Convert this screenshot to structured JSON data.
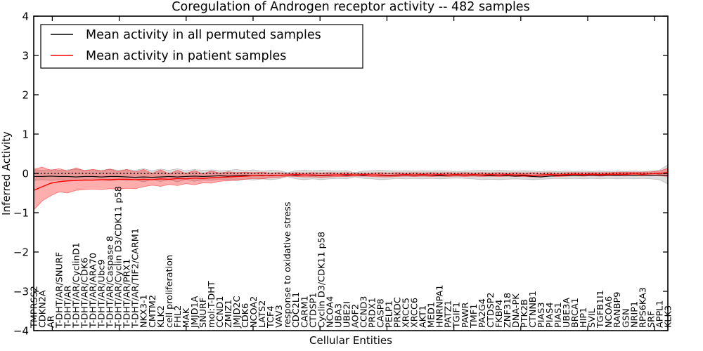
{
  "chart_data": {
    "type": "line",
    "title": "Coregulation of Androgen receptor activity -- 482 samples",
    "xlabel": "Cellular Entities",
    "ylabel": "Inferred Activity",
    "ylim": [
      -4,
      4
    ],
    "grid": false,
    "zero_line": "dotted",
    "yticks": [
      4,
      3,
      2,
      1,
      0,
      -1,
      -2,
      -3,
      -4
    ],
    "ytick_labels": [
      "4",
      "3",
      "2",
      "1",
      "0",
      "−1",
      "−2",
      "−3",
      "−4"
    ],
    "legend": {
      "position": "upper left",
      "entries": [
        {
          "label": "Mean activity in all permuted samples",
          "color": "#000000"
        },
        {
          "label": "Mean activity in patient samples",
          "color": "#ff0000"
        }
      ]
    },
    "categories": [
      "TMPRSS2",
      "CDKN2A",
      "AR",
      "T-DHT/AR/SNURF",
      "T-DHT/AR",
      "T-DHT/AR/CyclinD1",
      "T-DHT/AR/CDK6",
      "T-DHT/AR/ARA70",
      "T-DHT/AR/Ubc9",
      "T-DHT/AR/Caspase 8",
      "T-DHT/AR/Cyclin D3/CDK11 p58",
      "T-DHT/AR/PRX1",
      "T-DHT/AR/TIF2/CARM1",
      "NKX3-1",
      "CMTM2",
      "KLK2",
      "cell proliferation",
      "FHL2",
      "MAK",
      "JMJD1A",
      "SNURF",
      "mol:T-DHT",
      "CCND1",
      "ZMIZ1",
      "JMJD2C",
      "CDK6",
      "NCOA2",
      "LATS2",
      "TCF4",
      "VAV3",
      "response to oxidative stress",
      "CDC2L1",
      "CARM1",
      "CTDSP1",
      "Cyclin D3/CDK11 p58",
      "NCOA4",
      "UBA3",
      "UBE2I",
      "AOF2",
      "CCND3",
      "PRDX1",
      "CASP8",
      "PELP1",
      "PRKDC",
      "XRCC5",
      "XRCC6",
      "AKT1",
      "MED1",
      "HNRNPA1",
      "PATZ1",
      "TGIF1",
      "PAWR",
      "TMF1",
      "PA2G4",
      "CTDSP2",
      "FKBP4",
      "ZNF318",
      "DNA-PK",
      "PTK2B",
      "CTNNB1",
      "PIAS3",
      "PIAS4",
      "PIAS1",
      "UBE3A",
      "BRCA1",
      "HIP1",
      "SVIL",
      "TGFB1I1",
      "NCOA6",
      "RANBP9",
      "GSN",
      "NRIP1",
      "RPS6KA3",
      "SRF",
      "APPL1",
      "KLK3"
    ],
    "series": [
      {
        "name": "Mean activity in all permuted samples",
        "color": "#000000",
        "width": 1.1,
        "values": [
          -0.08,
          -0.08,
          -0.07,
          -0.08,
          -0.08,
          -0.09,
          -0.08,
          -0.08,
          -0.09,
          -0.08,
          -0.08,
          -0.09,
          -0.1,
          -0.09,
          -0.1,
          -0.09,
          -0.08,
          -0.09,
          -0.08,
          -0.07,
          -0.08,
          -0.07,
          -0.06,
          -0.07,
          -0.06,
          -0.05,
          -0.06,
          -0.05,
          -0.06,
          -0.05,
          -0.04,
          -0.05,
          -0.04,
          -0.05,
          -0.06,
          -0.05,
          -0.04,
          -0.05,
          -0.04,
          -0.05,
          -0.04,
          -0.05,
          -0.06,
          -0.05,
          -0.04,
          -0.05,
          -0.04,
          -0.05,
          -0.06,
          -0.05,
          -0.04,
          -0.05,
          -0.04,
          -0.05,
          -0.06,
          -0.05,
          -0.06,
          -0.07,
          -0.06,
          -0.08,
          -0.09,
          -0.07,
          -0.06,
          -0.05,
          -0.06,
          -0.05,
          -0.04,
          -0.05,
          -0.04,
          -0.05,
          -0.04,
          -0.05,
          -0.04,
          -0.05,
          -0.04,
          -0.05
        ]
      },
      {
        "name": "Mean activity in patient samples",
        "color": "#ff0000",
        "width": 1.4,
        "values": [
          -0.43,
          -0.34,
          -0.25,
          -0.21,
          -0.19,
          -0.18,
          -0.17,
          -0.17,
          -0.16,
          -0.16,
          -0.15,
          -0.15,
          -0.16,
          -0.15,
          -0.16,
          -0.14,
          -0.15,
          -0.13,
          -0.14,
          -0.12,
          -0.13,
          -0.11,
          -0.1,
          -0.09,
          -0.08,
          -0.07,
          -0.06,
          -0.06,
          -0.05,
          -0.05,
          -0.04,
          -0.03,
          -0.04,
          -0.04,
          -0.05,
          -0.04,
          -0.04,
          -0.03,
          -0.04,
          -0.03,
          -0.04,
          -0.04,
          -0.05,
          -0.04,
          -0.03,
          -0.04,
          -0.03,
          -0.04,
          -0.03,
          -0.04,
          -0.03,
          -0.04,
          -0.03,
          -0.04,
          -0.03,
          -0.04,
          -0.03,
          -0.04,
          -0.04,
          -0.05,
          -0.04,
          -0.03,
          -0.04,
          -0.03,
          -0.02,
          -0.03,
          -0.02,
          -0.03,
          -0.02,
          -0.02,
          -0.02,
          -0.01,
          -0.02,
          -0.01,
          0.0,
          0.02
        ]
      }
    ],
    "bands": [
      {
        "name": "permuted-samples-range",
        "color": "#000000",
        "opacity": 0.13,
        "hi": [
          0.1,
          0.08,
          0.1,
          0.08,
          0.09,
          0.11,
          0.08,
          0.1,
          0.08,
          0.11,
          0.08,
          0.1,
          0.08,
          0.12,
          0.07,
          0.11,
          0.08,
          0.12,
          0.07,
          0.1,
          0.08,
          0.09,
          0.07,
          0.08,
          0.1,
          0.07,
          0.09,
          0.06,
          0.08,
          0.07,
          0.02,
          0.07,
          0.08,
          0.07,
          0.08,
          0.07,
          0.06,
          0.07,
          0.02,
          0.06,
          0.07,
          0.08,
          0.07,
          0.06,
          0.07,
          0.06,
          0.07,
          0.06,
          0.07,
          0.06,
          0.05,
          0.06,
          0.07,
          0.08,
          0.07,
          0.08,
          0.07,
          0.06,
          0.07,
          0.06,
          0.05,
          0.06,
          0.05,
          0.06,
          0.05,
          0.06,
          0.05,
          0.06,
          0.05,
          0.06,
          0.05,
          0.06,
          0.05,
          0.06,
          0.08,
          0.22
        ],
        "lo": [
          -0.18,
          -0.16,
          -0.18,
          -0.16,
          -0.17,
          -0.19,
          -0.16,
          -0.18,
          -0.16,
          -0.19,
          -0.16,
          -0.18,
          -0.16,
          -0.22,
          -0.15,
          -0.21,
          -0.16,
          -0.22,
          -0.15,
          -0.2,
          -0.16,
          -0.18,
          -0.15,
          -0.16,
          -0.19,
          -0.15,
          -0.17,
          -0.14,
          -0.16,
          -0.14,
          -0.08,
          -0.14,
          -0.16,
          -0.14,
          -0.16,
          -0.14,
          -0.13,
          -0.14,
          -0.09,
          -0.13,
          -0.14,
          -0.16,
          -0.15,
          -0.13,
          -0.14,
          -0.13,
          -0.14,
          -0.13,
          -0.14,
          -0.13,
          -0.12,
          -0.13,
          -0.14,
          -0.16,
          -0.15,
          -0.16,
          -0.15,
          -0.14,
          -0.15,
          -0.16,
          -0.15,
          -0.14,
          -0.13,
          -0.14,
          -0.13,
          -0.14,
          -0.13,
          -0.14,
          -0.13,
          -0.14,
          -0.13,
          -0.14,
          -0.13,
          -0.14,
          -0.16,
          -0.27
        ]
      },
      {
        "name": "patient-samples-range",
        "color": "#ff0000",
        "opacity": 0.32,
        "hi": [
          0.11,
          0.16,
          0.08,
          0.12,
          0.06,
          0.14,
          0.07,
          0.1,
          0.06,
          0.11,
          0.05,
          0.1,
          0.04,
          0.1,
          0.0,
          0.09,
          -0.01,
          0.08,
          0.0,
          0.07,
          -0.01,
          0.06,
          0.01,
          0.04,
          0.02,
          0.03,
          0.02,
          0.03,
          0.01,
          0.02,
          0.0,
          0.02,
          0.01,
          0.02,
          0.01,
          0.02,
          0.01,
          0.02,
          0.0,
          0.01,
          0.01,
          0.02,
          0.01,
          0.02,
          0.01,
          0.02,
          0.01,
          0.02,
          0.01,
          0.02,
          0.01,
          0.02,
          0.01,
          0.02,
          0.01,
          0.02,
          0.01,
          0.02,
          0.01,
          0.02,
          0.01,
          0.02,
          0.01,
          0.02,
          0.02,
          0.02,
          0.02,
          0.02,
          0.02,
          0.03,
          0.03,
          0.03,
          0.03,
          0.04,
          0.06,
          0.13
        ],
        "lo": [
          -0.93,
          -0.7,
          -0.57,
          -0.47,
          -0.5,
          -0.43,
          -0.41,
          -0.4,
          -0.41,
          -0.39,
          -0.4,
          -0.38,
          -0.39,
          -0.34,
          -0.3,
          -0.33,
          -0.28,
          -0.31,
          -0.26,
          -0.29,
          -0.24,
          -0.25,
          -0.2,
          -0.19,
          -0.17,
          -0.15,
          -0.13,
          -0.14,
          -0.11,
          -0.1,
          -0.07,
          -0.08,
          -0.09,
          -0.09,
          -0.1,
          -0.09,
          -0.08,
          -0.08,
          -0.07,
          -0.07,
          -0.08,
          -0.09,
          -0.09,
          -0.08,
          -0.07,
          -0.08,
          -0.07,
          -0.08,
          -0.07,
          -0.08,
          -0.07,
          -0.08,
          -0.07,
          -0.08,
          -0.07,
          -0.08,
          -0.07,
          -0.08,
          -0.08,
          -0.09,
          -0.08,
          -0.07,
          -0.08,
          -0.07,
          -0.06,
          -0.07,
          -0.06,
          -0.07,
          -0.06,
          -0.06,
          -0.06,
          -0.05,
          -0.06,
          -0.05,
          -0.06,
          -0.08
        ]
      }
    ]
  }
}
